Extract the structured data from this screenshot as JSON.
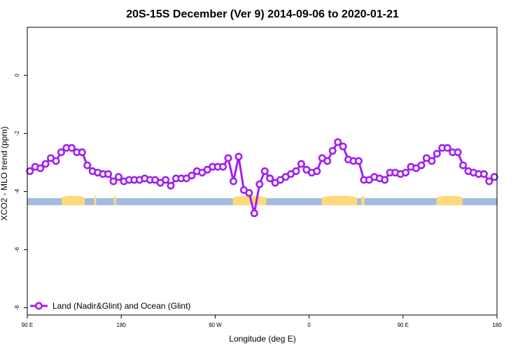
{
  "chart_data": {
    "type": "line",
    "title": "20S-15S December (Ver 9)   2014-09-06 to 2020-01-21",
    "xlabel": "Longitude (deg E)",
    "ylabel": "XCO2 - MLO trend (ppm)",
    "xlim": [
      90,
      540
    ],
    "ylim": [
      -8.25,
      1.65
    ],
    "x_ticks": [
      {
        "value": 90,
        "label": "90 E"
      },
      {
        "value": 180,
        "label": "180"
      },
      {
        "value": 270,
        "label": "90 W"
      },
      {
        "value": 360,
        "label": "0"
      },
      {
        "value": 450,
        "label": "90 E"
      },
      {
        "value": 540,
        "label": "180"
      }
    ],
    "y_ticks": [
      {
        "value": 0,
        "label": "0"
      },
      {
        "value": -2,
        "label": "-2"
      },
      {
        "value": -4,
        "label": "-4"
      },
      {
        "value": -6,
        "label": "-6"
      },
      {
        "value": -8,
        "label": "-8"
      }
    ],
    "legend": {
      "position": "bottom-left",
      "label": "Land (Nadir&Glint) and Ocean (Glint)"
    },
    "series": [
      {
        "name": "Land (Nadir&Glint) and Ocean (Glint)",
        "color": "#a020f0",
        "x": [
          92.5,
          97.5,
          102.5,
          107.5,
          112.5,
          117.5,
          122.5,
          127.5,
          132.5,
          137.5,
          142.5,
          147.5,
          152.5,
          157.5,
          162.5,
          167.5,
          172.5,
          177.5,
          182.5,
          187.5,
          192.5,
          197.5,
          202.5,
          207.5,
          212.5,
          217.5,
          222.5,
          227.5,
          232.5,
          237.5,
          242.5,
          247.5,
          252.5,
          257.5,
          262.5,
          267.5,
          272.5,
          277.5,
          282.5,
          287.5,
          292.5,
          297.5,
          302.5,
          307.5,
          312.5,
          317.5,
          322.5,
          327.5,
          332.5,
          337.5,
          342.5,
          347.5,
          352.5,
          357.5,
          362.5,
          367.5,
          372.5,
          377.5,
          382.5,
          387.5,
          392.5,
          397.5,
          402.5,
          407.5,
          412.5,
          417.5,
          422.5,
          427.5,
          432.5,
          437.5,
          442.5,
          447.5,
          452.5,
          457.5,
          462.5,
          467.5,
          472.5,
          477.5,
          482.5,
          487.5,
          492.5,
          497.5,
          502.5,
          507.5,
          512.5,
          517.5,
          522.5,
          527.5,
          532.5,
          537.5
        ],
        "values": [
          -3.3,
          -3.15,
          -3.2,
          -3.05,
          -2.85,
          -2.95,
          -2.65,
          -2.5,
          -2.5,
          -2.65,
          -2.65,
          -3.1,
          -3.3,
          -3.35,
          -3.4,
          -3.4,
          -3.65,
          -3.5,
          -3.65,
          -3.6,
          -3.6,
          -3.6,
          -3.55,
          -3.6,
          -3.6,
          -3.7,
          -3.6,
          -3.8,
          -3.55,
          -3.55,
          -3.55,
          -3.45,
          -3.3,
          -3.35,
          -3.25,
          -3.15,
          -3.15,
          -3.15,
          -2.85,
          -3.65,
          -2.8,
          -3.95,
          -4.05,
          -4.75,
          -3.75,
          -3.3,
          -3.55,
          -3.7,
          -3.6,
          -3.5,
          -3.4,
          -3.3,
          -3.05,
          -3.25,
          -3.35,
          -3.3,
          -2.85,
          -2.95,
          -2.6,
          -2.3,
          -2.45,
          -2.9,
          -2.95,
          -2.95,
          -3.6,
          -3.6,
          -3.5,
          -3.55,
          -3.6,
          -3.35,
          -3.35,
          -3.4,
          -3.35,
          -3.15,
          -3.2,
          -3.1,
          -2.85,
          -2.95,
          -2.7,
          -2.5,
          -2.5,
          -2.65,
          -2.65,
          -3.1,
          -3.3,
          -3.35,
          -3.4,
          -3.4,
          -3.65,
          -3.5
        ]
      }
    ],
    "surface_band": {
      "y_value": -4.35,
      "ocean_color": "#a3bbdd",
      "land_color": "#ffd97a",
      "land_segments": [
        [
          123,
          145
        ],
        [
          154,
          156
        ],
        [
          173,
          175
        ],
        [
          287,
          319
        ],
        [
          372,
          406
        ],
        [
          410,
          413
        ],
        [
          482,
          507
        ]
      ]
    }
  }
}
